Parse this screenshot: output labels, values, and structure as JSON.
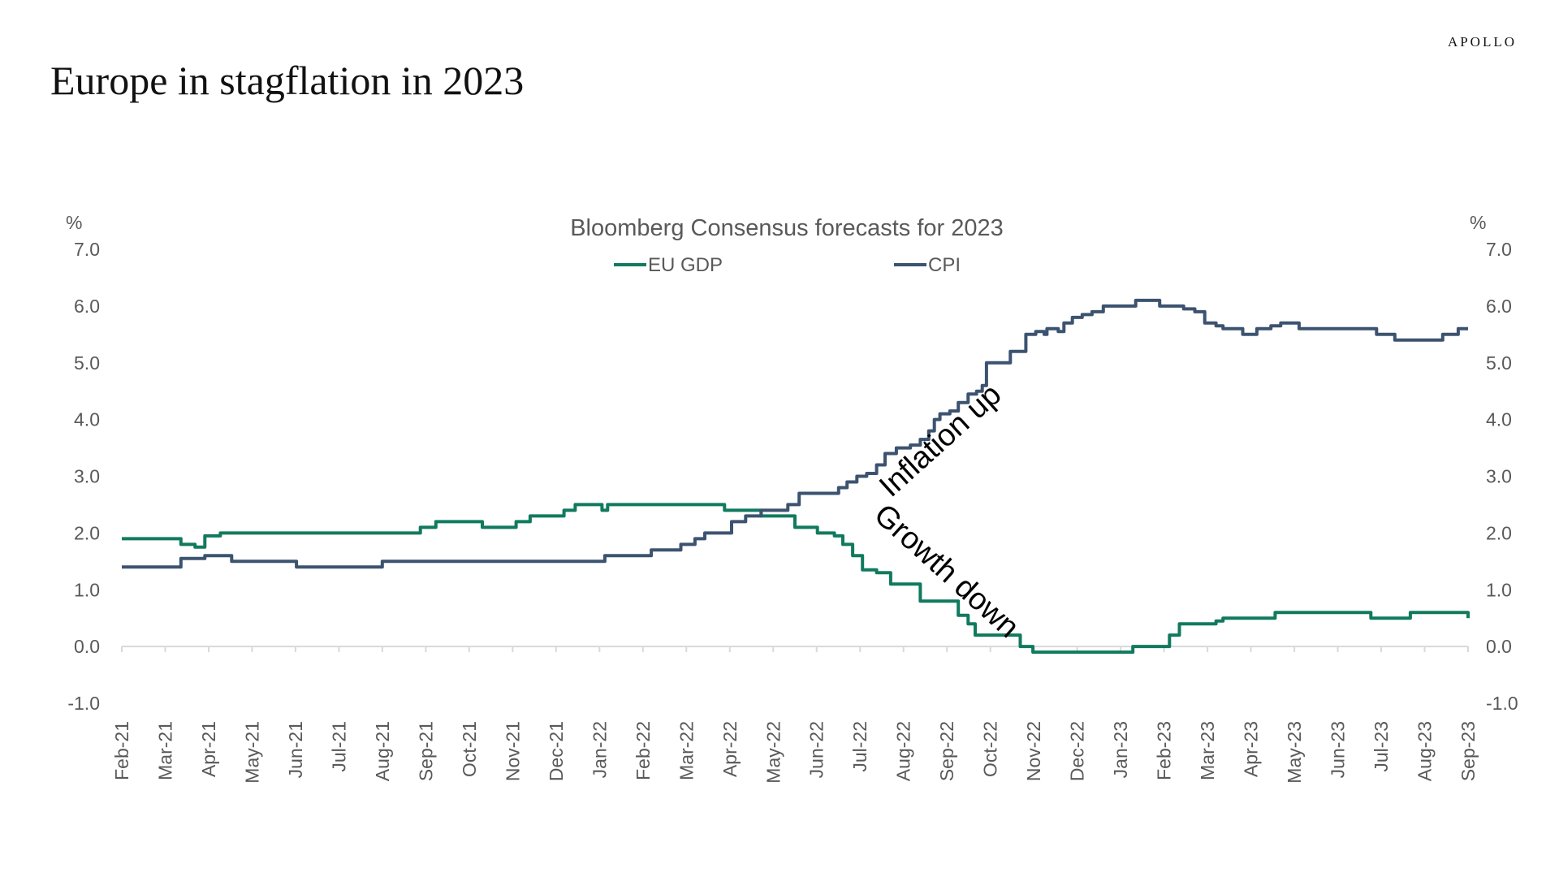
{
  "header": {
    "brand": "APOLLO",
    "title": "Europe in stagflation in 2023"
  },
  "colors": {
    "eu_gdp": "#117A5E",
    "cpi": "#3C5370",
    "axis": "#d9d9d9",
    "text": "#595959"
  },
  "chart_data": {
    "type": "line",
    "subtitle": "Bloomberg Consensus forecasts for 2023",
    "y_left_unit": "%",
    "y_right_unit": "%",
    "ylim": [
      -1.0,
      7.0
    ],
    "y_ticks": [
      "7.0",
      "6.0",
      "5.0",
      "4.0",
      "3.0",
      "2.0",
      "1.0",
      "0.0",
      "-1.0"
    ],
    "x_ticks": [
      "Feb-21",
      "Mar-21",
      "Apr-21",
      "May-21",
      "Jun-21",
      "Jul-21",
      "Aug-21",
      "Sep-21",
      "Oct-21",
      "Nov-21",
      "Dec-21",
      "Jan-22",
      "Feb-22",
      "Mar-22",
      "Apr-22",
      "May-22",
      "Jun-22",
      "Jul-22",
      "Aug-22",
      "Sep-22",
      "Oct-22",
      "Nov-22",
      "Dec-22",
      "Jan-23",
      "Feb-23",
      "Mar-23",
      "Apr-23",
      "May-23",
      "Jun-23",
      "Jul-23",
      "Aug-23",
      "Sep-23"
    ],
    "x_range": [
      "2021-02-01",
      "2023-09-15"
    ],
    "grid": false,
    "legend_position": "top-center",
    "series": [
      {
        "name": "EU GDP",
        "color": "#117A5E",
        "points": [
          [
            "2021-02-01",
            1.9
          ],
          [
            "2021-03-05",
            1.9
          ],
          [
            "2021-03-15",
            1.8
          ],
          [
            "2021-03-25",
            1.75
          ],
          [
            "2021-04-01",
            1.95
          ],
          [
            "2021-04-12",
            2.0
          ],
          [
            "2021-08-20",
            2.0
          ],
          [
            "2021-09-01",
            2.1
          ],
          [
            "2021-09-12",
            2.2
          ],
          [
            "2021-10-10",
            2.2
          ],
          [
            "2021-10-15",
            2.1
          ],
          [
            "2021-11-01",
            2.1
          ],
          [
            "2021-11-08",
            2.2
          ],
          [
            "2021-11-18",
            2.3
          ],
          [
            "2021-12-05",
            2.3
          ],
          [
            "2021-12-12",
            2.4
          ],
          [
            "2021-12-20",
            2.5
          ],
          [
            "2022-01-01",
            2.5
          ],
          [
            "2022-01-08",
            2.4
          ],
          [
            "2022-01-12",
            2.5
          ],
          [
            "2022-03-30",
            2.5
          ],
          [
            "2022-04-05",
            2.4
          ],
          [
            "2022-04-22",
            2.4
          ],
          [
            "2022-05-01",
            2.3
          ],
          [
            "2022-05-15",
            2.3
          ],
          [
            "2022-05-25",
            2.1
          ],
          [
            "2022-06-10",
            2.0
          ],
          [
            "2022-06-22",
            1.95
          ],
          [
            "2022-06-28",
            1.8
          ],
          [
            "2022-07-05",
            1.6
          ],
          [
            "2022-07-12",
            1.35
          ],
          [
            "2022-07-22",
            1.3
          ],
          [
            "2022-08-01",
            1.1
          ],
          [
            "2022-08-15",
            1.1
          ],
          [
            "2022-08-22",
            0.8
          ],
          [
            "2022-09-10",
            0.8
          ],
          [
            "2022-09-18",
            0.55
          ],
          [
            "2022-09-25",
            0.4
          ],
          [
            "2022-09-30",
            0.2
          ],
          [
            "2022-10-28",
            0.2
          ],
          [
            "2022-11-01",
            0.0
          ],
          [
            "2022-11-10",
            -0.1
          ],
          [
            "2023-01-15",
            -0.1
          ],
          [
            "2023-01-20",
            0.0
          ],
          [
            "2023-02-10",
            0.0
          ],
          [
            "2023-02-15",
            0.2
          ],
          [
            "2023-02-22",
            0.4
          ],
          [
            "2023-03-20",
            0.45
          ],
          [
            "2023-03-25",
            0.5
          ],
          [
            "2023-04-25",
            0.5
          ],
          [
            "2023-05-01",
            0.6
          ],
          [
            "2023-07-05",
            0.6
          ],
          [
            "2023-07-08",
            0.5
          ],
          [
            "2023-08-01",
            0.5
          ],
          [
            "2023-08-05",
            0.6
          ],
          [
            "2023-09-10",
            0.6
          ],
          [
            "2023-09-15",
            0.5
          ]
        ]
      },
      {
        "name": "CPI",
        "color": "#3C5370",
        "points": [
          [
            "2021-02-01",
            1.4
          ],
          [
            "2021-03-10",
            1.4
          ],
          [
            "2021-03-15",
            1.55
          ],
          [
            "2021-03-30",
            1.55
          ],
          [
            "2021-04-01",
            1.6
          ],
          [
            "2021-04-18",
            1.6
          ],
          [
            "2021-04-20",
            1.5
          ],
          [
            "2021-06-01",
            1.5
          ],
          [
            "2021-06-05",
            1.4
          ],
          [
            "2021-07-01",
            1.4
          ],
          [
            "2021-08-01",
            1.4
          ],
          [
            "2021-08-05",
            1.5
          ],
          [
            "2022-01-05",
            1.5
          ],
          [
            "2022-01-10",
            1.6
          ],
          [
            "2022-02-05",
            1.6
          ],
          [
            "2022-02-12",
            1.7
          ],
          [
            "2022-03-01",
            1.7
          ],
          [
            "2022-03-05",
            1.8
          ],
          [
            "2022-03-15",
            1.9
          ],
          [
            "2022-03-22",
            2.0
          ],
          [
            "2022-04-01",
            2.0
          ],
          [
            "2022-04-10",
            2.2
          ],
          [
            "2022-04-20",
            2.3
          ],
          [
            "2022-05-01",
            2.4
          ],
          [
            "2022-05-12",
            2.4
          ],
          [
            "2022-05-20",
            2.5
          ],
          [
            "2022-05-28",
            2.7
          ],
          [
            "2022-06-20",
            2.7
          ],
          [
            "2022-06-25",
            2.8
          ],
          [
            "2022-07-01",
            2.9
          ],
          [
            "2022-07-08",
            3.0
          ],
          [
            "2022-07-15",
            3.05
          ],
          [
            "2022-07-22",
            3.2
          ],
          [
            "2022-07-28",
            3.4
          ],
          [
            "2022-08-05",
            3.5
          ],
          [
            "2022-08-15",
            3.55
          ],
          [
            "2022-08-22",
            3.65
          ],
          [
            "2022-08-28",
            3.8
          ],
          [
            "2022-09-01",
            4.0
          ],
          [
            "2022-09-05",
            4.1
          ],
          [
            "2022-09-12",
            4.15
          ],
          [
            "2022-09-18",
            4.3
          ],
          [
            "2022-09-25",
            4.45
          ],
          [
            "2022-10-01",
            4.5
          ],
          [
            "2022-10-05",
            4.6
          ],
          [
            "2022-10-08",
            5.0
          ],
          [
            "2022-10-20",
            5.0
          ],
          [
            "2022-10-25",
            5.2
          ],
          [
            "2022-11-01",
            5.2
          ],
          [
            "2022-11-05",
            5.5
          ],
          [
            "2022-11-12",
            5.55
          ],
          [
            "2022-11-18",
            5.5
          ],
          [
            "2022-11-20",
            5.6
          ],
          [
            "2022-11-28",
            5.55
          ],
          [
            "2022-12-02",
            5.7
          ],
          [
            "2022-12-08",
            5.8
          ],
          [
            "2022-12-15",
            5.85
          ],
          [
            "2022-12-22",
            5.9
          ],
          [
            "2022-12-30",
            6.0
          ],
          [
            "2023-01-20",
            6.0
          ],
          [
            "2023-01-22",
            6.1
          ],
          [
            "2023-02-05",
            6.1
          ],
          [
            "2023-02-08",
            6.0
          ],
          [
            "2023-02-20",
            6.0
          ],
          [
            "2023-02-25",
            5.95
          ],
          [
            "2023-03-05",
            5.9
          ],
          [
            "2023-03-12",
            5.7
          ],
          [
            "2023-03-20",
            5.65
          ],
          [
            "2023-03-25",
            5.6
          ],
          [
            "2023-04-05",
            5.6
          ],
          [
            "2023-04-08",
            5.5
          ],
          [
            "2023-04-15",
            5.5
          ],
          [
            "2023-04-18",
            5.6
          ],
          [
            "2023-04-28",
            5.65
          ],
          [
            "2023-05-05",
            5.7
          ],
          [
            "2023-05-15",
            5.7
          ],
          [
            "2023-05-18",
            5.6
          ],
          [
            "2023-07-10",
            5.6
          ],
          [
            "2023-07-12",
            5.5
          ],
          [
            "2023-07-22",
            5.5
          ],
          [
            "2023-07-25",
            5.4
          ],
          [
            "2023-08-25",
            5.4
          ],
          [
            "2023-08-28",
            5.5
          ],
          [
            "2023-09-05",
            5.5
          ],
          [
            "2023-09-08",
            5.6
          ],
          [
            "2023-09-15",
            5.6
          ]
        ]
      }
    ],
    "annotations": [
      {
        "text": "Inflation up",
        "x": "2022-09-10",
        "y": 3.5,
        "rotation_deg": -42
      },
      {
        "text": "Growth down",
        "x": "2022-09-05",
        "y": 1.2,
        "rotation_deg": 42
      }
    ]
  }
}
